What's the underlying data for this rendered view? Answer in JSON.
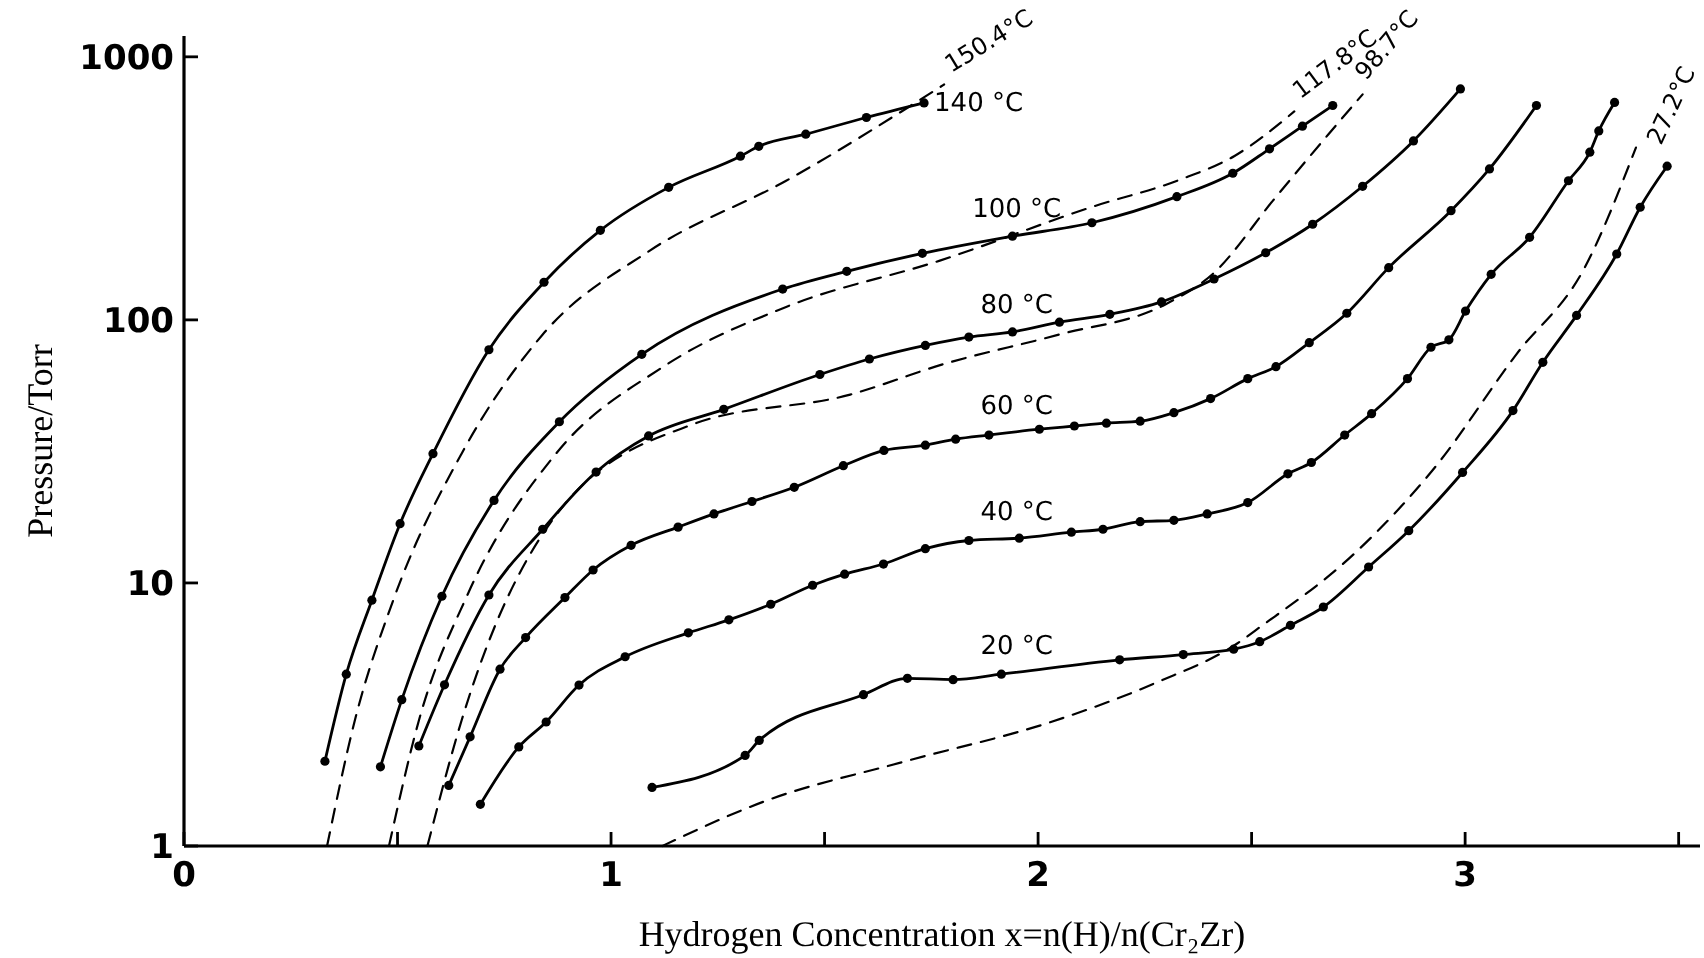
{
  "chart_data": {
    "type": "line",
    "xlabel": "Hydrogen Concentration x=n(H)/n(Cr₂Zr)",
    "ylabel": "Pressure/Torr",
    "xlim": [
      0,
      3.55
    ],
    "ylim": [
      1,
      1200
    ],
    "log": "y",
    "xticks": [
      0,
      {
        "value": 0.5,
        "label": null
      },
      1,
      {
        "value": 1.5,
        "label": null
      },
      2,
      {
        "value": 2.5,
        "label": null
      },
      3,
      {
        "value": 3.5,
        "label": null
      }
    ],
    "yticks": [
      1,
      10,
      100,
      1000
    ],
    "series": [
      {
        "name": "140 °C",
        "color": "#000000",
        "marker": "circle",
        "line_style": "solid",
        "x": [
          0.33,
          0.38,
          0.44,
          0.506,
          0.583,
          0.714,
          0.843,
          0.975,
          1.135,
          1.303,
          1.346,
          1.456,
          1.598,
          1.733
        ],
        "values": [
          2.1,
          4.5,
          8.6,
          16.8,
          31,
          77,
          139,
          219,
          319,
          419,
          457,
          508,
          588,
          668
        ]
      },
      {
        "name": "150.4°C",
        "color": "#000000",
        "marker": "none",
        "line_style": "dashed",
        "x": [
          0.335,
          0.4,
          0.49,
          0.65,
          0.84,
          1.09,
          1.41,
          1.78
        ],
        "values": [
          1,
          3,
          8.6,
          31,
          88,
          183,
          338,
          785
        ]
      },
      {
        "name": "100 °C",
        "color": "#000000",
        "marker": "circle",
        "line_style": "solid",
        "x": [
          0.46,
          0.51,
          0.604,
          0.726,
          0.879,
          1.072,
          1.402,
          1.552,
          1.729,
          1.94,
          2.126,
          2.325,
          2.456,
          2.542,
          2.619,
          2.69
        ],
        "values": [
          2,
          3.6,
          8.9,
          20.6,
          41,
          74,
          131,
          153,
          179,
          208,
          234,
          294,
          361,
          447,
          545,
          653
        ]
      },
      {
        "name": "117.8°C",
        "color": "#000000",
        "marker": "none",
        "line_style": "dashed",
        "x": [
          0.48,
          0.55,
          0.665,
          0.871,
          1.12,
          1.41,
          1.77,
          2.13,
          2.33,
          2.46,
          2.6
        ],
        "values": [
          1,
          3,
          9.1,
          31,
          66,
          112,
          168,
          270,
          340,
          420,
          620
        ]
      },
      {
        "name": "80 °C",
        "color": "#000000",
        "marker": "circle",
        "line_style": "solid",
        "x": [
          0.55,
          0.61,
          0.714,
          0.84,
          0.965,
          1.088,
          1.264,
          1.489,
          1.605,
          1.736,
          1.838,
          1.94,
          2.05,
          2.168,
          2.289,
          2.412,
          2.533,
          2.643,
          2.76,
          2.879,
          2.989
        ],
        "values": [
          2.4,
          4.1,
          9,
          16,
          26.4,
          36.2,
          45.7,
          62,
          71,
          80,
          86,
          90,
          98,
          105,
          117,
          143,
          180,
          231,
          322,
          479,
          755
        ]
      },
      {
        "name": "98.7°C",
        "color": "#000000",
        "marker": "none",
        "line_style": "dashed",
        "x": [
          0.57,
          0.65,
          0.87,
          1.19,
          1.56,
          1.78,
          2.05,
          2.3,
          2.41,
          2.55,
          2.68,
          2.76
        ],
        "values": [
          1,
          3,
          18,
          40,
          52,
          68,
          88,
          115,
          150,
          284,
          508,
          720
        ]
      },
      {
        "name": "60 °C",
        "color": "#000000",
        "marker": "circle",
        "line_style": "solid",
        "x": [
          0.62,
          0.67,
          0.74,
          0.8,
          0.892,
          0.958,
          1.047,
          1.157,
          1.241,
          1.33,
          1.429,
          1.544,
          1.639,
          1.736,
          1.807,
          1.885,
          2.003,
          2.085,
          2.16,
          2.239,
          2.318,
          2.404,
          2.491,
          2.557,
          2.635,
          2.723,
          2.821,
          2.967,
          3.057,
          3.167
        ],
        "values": [
          1.7,
          2.6,
          4.7,
          6.2,
          8.8,
          11.2,
          13.9,
          16.3,
          18.3,
          20.4,
          23.1,
          27.9,
          31.9,
          33.4,
          35.2,
          36.5,
          38.4,
          39.5,
          40.5,
          41.2,
          44.4,
          50.2,
          59.8,
          66.4,
          81.9,
          106,
          158,
          260,
          375,
          653
        ]
      },
      {
        "name": "40 °C",
        "color": "#000000",
        "marker": "circle",
        "line_style": "solid",
        "x": [
          0.694,
          0.784,
          0.848,
          0.925,
          1.033,
          1.181,
          1.276,
          1.374,
          1.472,
          1.547,
          1.638,
          1.736,
          1.838,
          1.956,
          2.078,
          2.152,
          2.239,
          2.318,
          2.396,
          2.491,
          2.585,
          2.64,
          2.718,
          2.781,
          2.865,
          2.92,
          2.962,
          3.001,
          3.061,
          3.151,
          3.242,
          3.292,
          3.313,
          3.35
        ],
        "values": [
          1.44,
          2.38,
          2.96,
          4.09,
          5.24,
          6.46,
          7.24,
          8.3,
          9.8,
          10.8,
          11.8,
          13.5,
          14.5,
          14.8,
          15.6,
          16,
          17.1,
          17.3,
          18.3,
          20.2,
          26,
          28.7,
          36.5,
          44,
          59.8,
          78.7,
          84,
          108,
          149,
          206,
          338,
          434,
          523,
          671
        ]
      },
      {
        "name": "20 °C",
        "color": "#000000",
        "marker": "circle",
        "line_style": "solid",
        "x": [
          1.096,
          1.314,
          1.347,
          1.591,
          1.694,
          1.801,
          1.914,
          2.191,
          2.34,
          2.458,
          2.519,
          2.591,
          2.668,
          2.774,
          2.868,
          2.994,
          3.112,
          3.182,
          3.261,
          3.355,
          3.41,
          3.473
        ],
        "values": [
          1.67,
          2.21,
          2.52,
          3.76,
          4.34,
          4.29,
          4.5,
          5.1,
          5.34,
          5.6,
          5.98,
          6.9,
          8.1,
          11.5,
          15.8,
          26.3,
          45.2,
          69,
          104,
          178,
          268,
          384
        ]
      },
      {
        "name": "27.2°C",
        "color": "#000000",
        "marker": "none",
        "line_style": "dashed",
        "x": [
          1.12,
          1.36,
          1.69,
          2.03,
          2.28,
          2.46,
          2.52,
          2.74,
          2.93,
          3.12,
          3.28,
          3.4
        ],
        "values": [
          1,
          1.48,
          2.1,
          2.96,
          4.2,
          5.8,
          6.8,
          12.9,
          27.6,
          74,
          158,
          452
        ]
      }
    ]
  }
}
